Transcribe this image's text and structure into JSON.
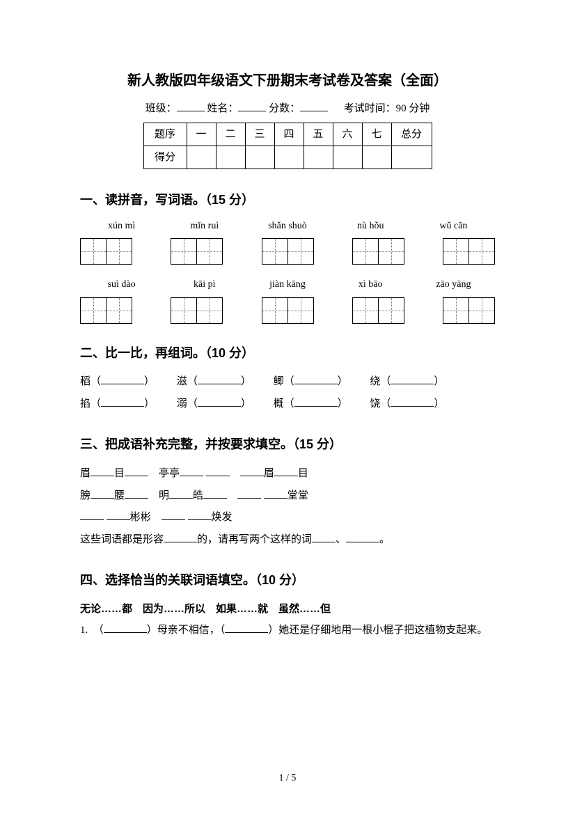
{
  "title": "新人教版四年级语文下册期末考试卷及答案（全面）",
  "info": {
    "class_label": "班级：",
    "name_label": "姓名：",
    "score_label": "分数：",
    "time_label": "考试时间：90 分钟"
  },
  "score_table": {
    "row1": [
      "题序",
      "一",
      "二",
      "三",
      "四",
      "五",
      "六",
      "七",
      "总分"
    ],
    "row2_label": "得分"
  },
  "s1": {
    "title": "一、读拼音，写词语。（15 分）",
    "pinyin_row1": [
      "xún mì",
      "mǐn ruì",
      "shǎn shuò",
      "nù hǒu",
      "wǔ cān"
    ],
    "pinyin_row2": [
      "suì dào",
      "kāi pì",
      "jiàn kāng",
      "xì bāo",
      "zāo yāng"
    ]
  },
  "s2": {
    "title": "二、比一比，再组词。（10 分）",
    "chars_row1": [
      "稻",
      "滋",
      "鲫",
      "绕"
    ],
    "chars_row2": [
      "掐",
      "溺",
      "概",
      "饶"
    ]
  },
  "s3": {
    "title": "三、把成语补充完整，并按要求填空。（15 分）",
    "line1_a": "眉",
    "line1_b": "目",
    "line1_c": "亭亭",
    "line1_d": "眉",
    "line1_e": "目",
    "line2_a": "膀",
    "line2_b": "腰",
    "line2_c": "明",
    "line2_d": "皓",
    "line2_e": "堂堂",
    "line3_a": "彬彬",
    "line3_b": "焕发",
    "line4_a": "这些词语都是形容",
    "line4_b": "的，请再写两个这样的词",
    "line4_c": "、",
    "line4_d": "。"
  },
  "s4": {
    "title": "四、选择恰当的关联词语填空。（10 分）",
    "options": "无论……都　因为……所以　如果……就　虽然……但",
    "q1_num": "1.",
    "q1_a": "（",
    "q1_b": "）母亲不相信，（",
    "q1_c": "）她还是仔细地用一根小棍子把这植物支起来。"
  },
  "page_num": "1 / 5"
}
